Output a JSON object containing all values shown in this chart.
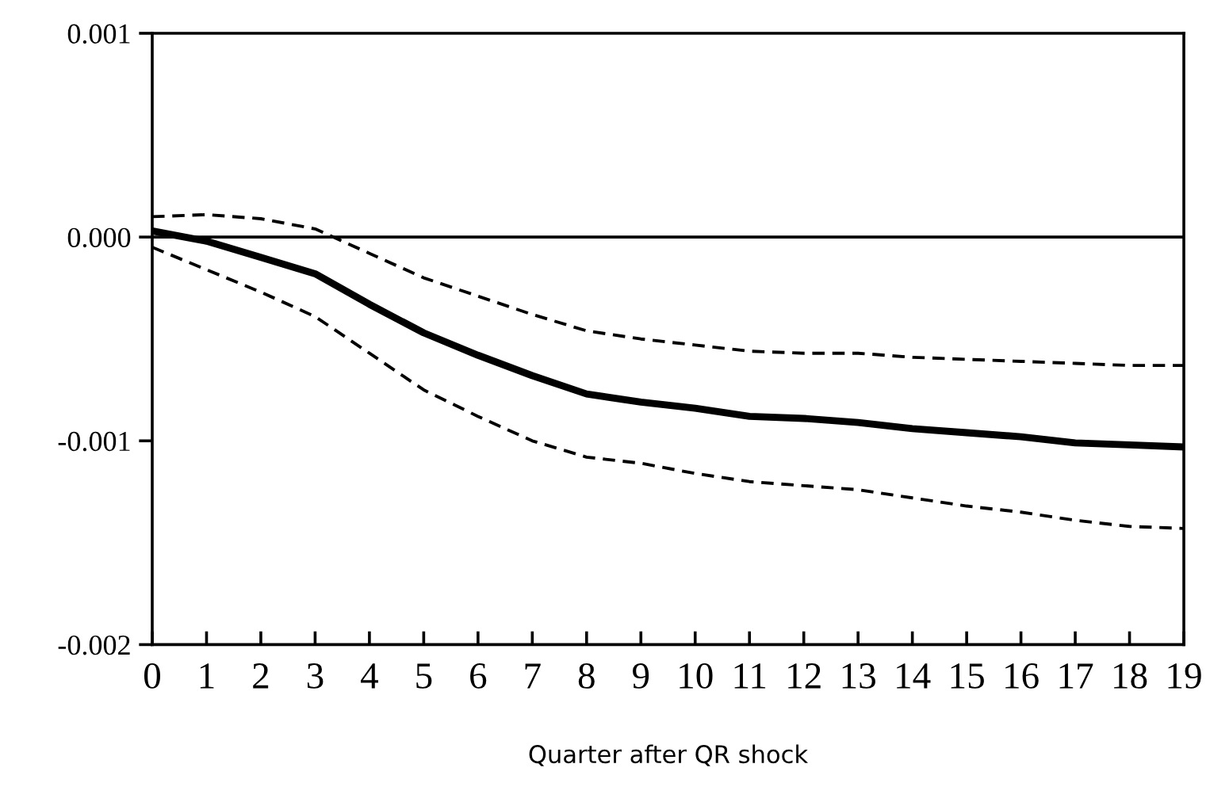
{
  "chart_data": {
    "type": "line",
    "xlabel": "Quarter after QR shock",
    "x": [
      0,
      1,
      2,
      3,
      4,
      5,
      6,
      7,
      8,
      9,
      10,
      11,
      12,
      13,
      14,
      15,
      16,
      17,
      18,
      19
    ],
    "series": [
      {
        "color": "#000000",
        "line_style": "solid",
        "values": [
          3e-05,
          -2e-05,
          -0.0001,
          -0.00018,
          -0.00033,
          -0.00047,
          -0.00058,
          -0.00068,
          -0.00077,
          -0.00081,
          -0.00084,
          -0.00088,
          -0.00089,
          -0.00091,
          -0.00094,
          -0.00096,
          -0.00098,
          -0.00101,
          -0.00102,
          -0.00103
        ]
      },
      {
        "color": "#000000",
        "line_style": "dashed",
        "values": [
          0.0001,
          0.00011,
          9e-05,
          4e-05,
          -8e-05,
          -0.0002,
          -0.00029,
          -0.00038,
          -0.00046,
          -0.0005,
          -0.00053,
          -0.00056,
          -0.00057,
          -0.00057,
          -0.00059,
          -0.0006,
          -0.00061,
          -0.00062,
          -0.00063,
          -0.00063
        ]
      },
      {
        "color": "#000000",
        "line_style": "dashed",
        "values": [
          -5e-05,
          -0.00016,
          -0.00027,
          -0.00039,
          -0.00057,
          -0.00075,
          -0.00088,
          -0.001,
          -0.00108,
          -0.00111,
          -0.00116,
          -0.0012,
          -0.00122,
          -0.00124,
          -0.00128,
          -0.00132,
          -0.00135,
          -0.00139,
          -0.00142,
          -0.00143
        ]
      }
    ],
    "xlim": [
      0,
      19
    ],
    "xticks": [
      0,
      1,
      2,
      3,
      4,
      5,
      6,
      7,
      8,
      9,
      10,
      11,
      12,
      13,
      14,
      15,
      16,
      17,
      18,
      19
    ],
    "ylim": [
      -0.002,
      0.001
    ],
    "yticks": [
      {
        "value": -0.002,
        "label": "-0.002"
      },
      {
        "value": -0.001,
        "label": "-0.001"
      },
      {
        "value": 0,
        "label": "0.000"
      },
      {
        "value": 0.001,
        "label": "0.001"
      }
    ],
    "ref_lines": [
      {
        "axis": "y",
        "value": 0,
        "color": "#000000",
        "line_style": "solid"
      }
    ],
    "grid": false,
    "legend": false
  }
}
